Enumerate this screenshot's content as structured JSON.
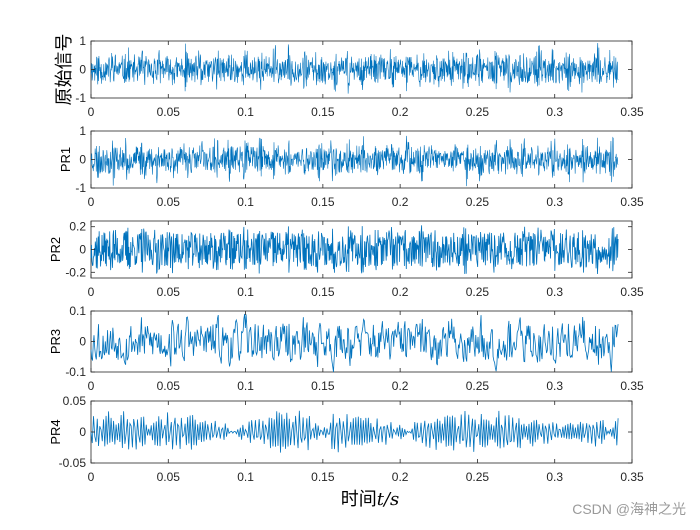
{
  "chart_data": [
    {
      "type": "line",
      "ylabel": "原始信号",
      "xlim": [
        0,
        0.35
      ],
      "ylim": [
        -1,
        1
      ],
      "xticks": [
        "0",
        "0.05",
        "0.1",
        "0.15",
        "0.2",
        "0.25",
        "0.3",
        "0.35"
      ],
      "yticks": [
        "-1",
        "0",
        "1"
      ],
      "series": [
        {
          "color": "#0072BD",
          "x_range": [
            0,
            0.341
          ],
          "amplitude": 1.0
        }
      ]
    },
    {
      "type": "line",
      "ylabel": "PR1",
      "xlim": [
        0,
        0.35
      ],
      "ylim": [
        -1,
        1
      ],
      "xticks": [
        "0",
        "0.05",
        "0.1",
        "0.15",
        "0.2",
        "0.25",
        "0.3",
        "0.35"
      ],
      "yticks": [
        "-1",
        "0",
        "1"
      ],
      "series": [
        {
          "color": "#0072BD",
          "x_range": [
            0,
            0.341
          ],
          "amplitude": 1.0
        }
      ]
    },
    {
      "type": "line",
      "ylabel": "PR2",
      "xlim": [
        0,
        0.35
      ],
      "ylim": [
        -0.25,
        0.25
      ],
      "xticks": [
        "0",
        "0.05",
        "0.1",
        "0.15",
        "0.2",
        "0.25",
        "0.3",
        "0.35"
      ],
      "yticks": [
        "-0.2",
        "0",
        "0.2"
      ],
      "series": [
        {
          "color": "#0072BD",
          "x_range": [
            0,
            0.341
          ],
          "amplitude": 0.22
        }
      ]
    },
    {
      "type": "line",
      "ylabel": "PR3",
      "xlim": [
        0,
        0.35
      ],
      "ylim": [
        -0.1,
        0.1
      ],
      "xticks": [
        "0",
        "0.05",
        "0.1",
        "0.15",
        "0.2",
        "0.25",
        "0.3",
        "0.35"
      ],
      "yticks": [
        "-0.1",
        "0",
        "0.1"
      ],
      "series": [
        {
          "color": "#0072BD",
          "x_range": [
            0,
            0.341
          ],
          "amplitude": 0.1
        }
      ]
    },
    {
      "type": "line",
      "ylabel": "PR4",
      "xlim": [
        0,
        0.35
      ],
      "ylim": [
        -0.05,
        0.05
      ],
      "xticks": [
        "0",
        "0.05",
        "0.1",
        "0.15",
        "0.2",
        "0.25",
        "0.3",
        "0.35"
      ],
      "yticks": [
        "-0.05",
        "0",
        "0.05"
      ],
      "series": [
        {
          "color": "#0072BD",
          "x_range": [
            0,
            0.341
          ],
          "amplitude": 0.035
        }
      ]
    }
  ],
  "xlabel": {
    "prefix": "时间",
    "variable": "t/s"
  },
  "watermark": "CSDN @海神之光"
}
